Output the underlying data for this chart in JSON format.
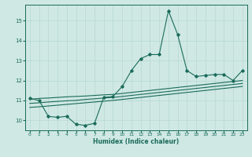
{
  "title": "",
  "xlabel": "Humidex (Indice chaleur)",
  "ylabel": "",
  "background_color": "#cfe8e4",
  "grid_color": "#b8d8d4",
  "line_color": "#1a6b5a",
  "x_values": [
    0,
    1,
    2,
    3,
    4,
    5,
    6,
    7,
    8,
    9,
    10,
    11,
    12,
    13,
    14,
    15,
    16,
    17,
    18,
    19,
    20,
    21,
    22,
    23
  ],
  "y_main": [
    11.1,
    11.0,
    10.2,
    10.15,
    10.2,
    9.8,
    9.75,
    9.85,
    11.15,
    11.2,
    11.7,
    12.5,
    13.1,
    13.3,
    13.3,
    15.5,
    14.3,
    12.5,
    12.2,
    12.25,
    12.3,
    12.3,
    12.0,
    12.5
  ],
  "y_line1": [
    11.05,
    11.1,
    11.12,
    11.15,
    11.18,
    11.2,
    11.22,
    11.25,
    11.28,
    11.3,
    11.35,
    11.4,
    11.45,
    11.5,
    11.55,
    11.6,
    11.65,
    11.7,
    11.75,
    11.8,
    11.85,
    11.9,
    11.95,
    12.0
  ],
  "y_line2": [
    10.85,
    10.88,
    10.92,
    10.95,
    10.98,
    11.0,
    11.05,
    11.08,
    11.12,
    11.15,
    11.2,
    11.25,
    11.3,
    11.35,
    11.4,
    11.45,
    11.5,
    11.55,
    11.6,
    11.65,
    11.7,
    11.75,
    11.8,
    11.85
  ],
  "y_line3": [
    10.65,
    10.68,
    10.72,
    10.76,
    10.8,
    10.84,
    10.88,
    10.92,
    10.96,
    11.0,
    11.05,
    11.1,
    11.15,
    11.2,
    11.25,
    11.3,
    11.35,
    11.4,
    11.45,
    11.5,
    11.55,
    11.6,
    11.65,
    11.7
  ],
  "ylim": [
    9.5,
    15.8
  ],
  "xlim": [
    -0.5,
    23.5
  ],
  "yticks": [
    10,
    11,
    12,
    13,
    14,
    15
  ],
  "xticks": [
    0,
    1,
    2,
    3,
    4,
    5,
    6,
    7,
    8,
    9,
    10,
    11,
    12,
    13,
    14,
    15,
    16,
    17,
    18,
    19,
    20,
    21,
    22,
    23
  ]
}
